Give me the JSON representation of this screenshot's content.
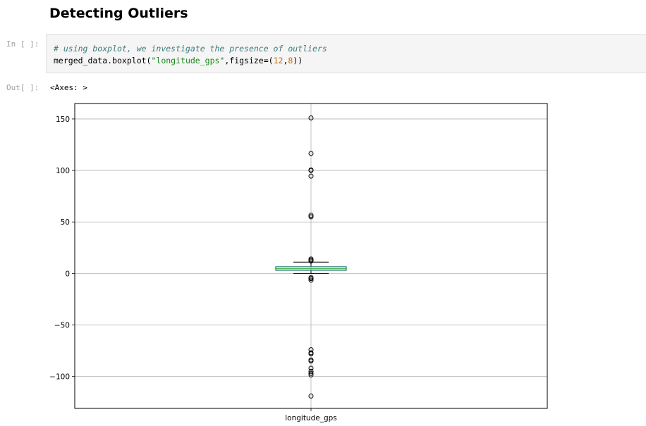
{
  "heading": "Detecting Outliers",
  "input_prompt": "In [ ]:",
  "output_prompt": "Out[ ]:",
  "code": {
    "comment": "# using boxplot, we investigate the presence of outliers",
    "line2_prefix": "merged_data.boxplot(",
    "line2_string": "\"longitude_gps\"",
    "line2_middle": ",figsize=(",
    "line2_num1": "12",
    "line2_comma": ",",
    "line2_num2": "8",
    "line2_suffix": "))"
  },
  "output_text": "<Axes: >",
  "chart_data": {
    "type": "boxplot",
    "xlabel": "",
    "ylabel": "",
    "categories": [
      "longitude_gps"
    ],
    "ylim": [
      -131,
      165
    ],
    "yticks": [
      150,
      100,
      50,
      0,
      -50,
      -100
    ],
    "ytick_labels": [
      "150",
      "100",
      "50",
      "0",
      "−50",
      "−100"
    ],
    "grid": true,
    "box": {
      "whisker_low": 0,
      "q1": 3,
      "median": 4.5,
      "q3": 6.5,
      "whisker_high": 11
    },
    "outliers": [
      151,
      116.5,
      100.5,
      100,
      94.5,
      56.5,
      55,
      14,
      13,
      12,
      -4,
      -5,
      -6.5,
      -74,
      -77,
      -78,
      -84,
      -85,
      -92,
      -95,
      -97,
      -98.5,
      -119
    ],
    "colors": {
      "box": "#1f7a72",
      "median": "#2ca02c",
      "whisker": "#000000",
      "grid": "#b0b0b0"
    }
  }
}
